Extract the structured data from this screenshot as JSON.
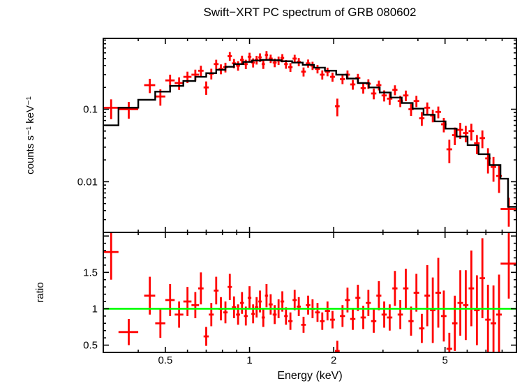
{
  "chart_data": {
    "type": "scatter",
    "title": "Swift−XRT PC spectrum of GRB 080602",
    "xlabel": "Energy (keV)",
    "xscale": "log",
    "xlim": [
      0.3,
      9.0
    ],
    "xticks": [
      {
        "v": 0.5,
        "label": "0.5"
      },
      {
        "v": 1,
        "label": "1"
      },
      {
        "v": 2,
        "label": "2"
      },
      {
        "v": 5,
        "label": "5"
      }
    ],
    "x_minor_ticks": [
      0.4,
      0.6,
      0.7,
      0.8,
      0.9,
      3,
      4,
      6,
      7,
      8
    ],
    "colors": {
      "data": "#ff0000",
      "model": "#000000",
      "reference": "#00ff00",
      "axis": "#000000",
      "background": "#ffffff"
    },
    "legend": "none",
    "grid": false,
    "panels": [
      {
        "name": "spectrum",
        "ylabel": "counts s⁻¹ keV⁻¹",
        "yscale": "log",
        "ylim": [
          0.002,
          0.95
        ],
        "yticks": [
          {
            "v": 0.01,
            "label": "0.01"
          },
          {
            "v": 0.1,
            "label": "0.1"
          }
        ],
        "model_step": {
          "edges": [
            0.3,
            0.34,
            0.4,
            0.46,
            0.52,
            0.58,
            0.64,
            0.7,
            0.76,
            0.82,
            0.88,
            0.95,
            1.02,
            1.1,
            1.2,
            1.3,
            1.42,
            1.55,
            1.7,
            1.86,
            2.04,
            2.23,
            2.44,
            2.67,
            2.92,
            3.2,
            3.5,
            3.83,
            4.19,
            4.59,
            5.02,
            5.5,
            6.02,
            6.59,
            7.21,
            7.89,
            8.4,
            9.0
          ],
          "values": [
            0.06,
            0.105,
            0.135,
            0.175,
            0.21,
            0.245,
            0.28,
            0.315,
            0.35,
            0.385,
            0.42,
            0.45,
            0.47,
            0.48,
            0.475,
            0.46,
            0.44,
            0.41,
            0.375,
            0.34,
            0.3,
            0.265,
            0.23,
            0.2,
            0.17,
            0.145,
            0.122,
            0.102,
            0.084,
            0.068,
            0.054,
            0.042,
            0.032,
            0.024,
            0.017,
            0.011,
            0.0045
          ]
        },
        "points": [
          [
            0.32,
            0.02,
            0.105,
            0.032
          ],
          [
            0.37,
            0.03,
            0.1,
            0.026
          ],
          [
            0.44,
            0.02,
            0.215,
            0.048
          ],
          [
            0.48,
            0.02,
            0.15,
            0.038
          ],
          [
            0.52,
            0.02,
            0.25,
            0.05
          ],
          [
            0.56,
            0.02,
            0.23,
            0.045
          ],
          [
            0.6,
            0.02,
            0.28,
            0.05
          ],
          [
            0.64,
            0.02,
            0.3,
            0.052
          ],
          [
            0.67,
            0.015,
            0.34,
            0.058
          ],
          [
            0.7,
            0.015,
            0.2,
            0.042
          ],
          [
            0.73,
            0.015,
            0.31,
            0.052
          ],
          [
            0.76,
            0.015,
            0.42,
            0.062
          ],
          [
            0.79,
            0.015,
            0.36,
            0.056
          ],
          [
            0.82,
            0.015,
            0.38,
            0.058
          ],
          [
            0.85,
            0.015,
            0.54,
            0.075
          ],
          [
            0.88,
            0.015,
            0.43,
            0.063
          ],
          [
            0.91,
            0.015,
            0.4,
            0.06
          ],
          [
            0.94,
            0.015,
            0.48,
            0.068
          ],
          [
            0.97,
            0.015,
            0.42,
            0.062
          ],
          [
            1.0,
            0.015,
            0.53,
            0.072
          ],
          [
            1.03,
            0.015,
            0.44,
            0.063
          ],
          [
            1.06,
            0.015,
            0.48,
            0.066
          ],
          [
            1.09,
            0.015,
            0.52,
            0.07
          ],
          [
            1.12,
            0.015,
            0.42,
            0.06
          ],
          [
            1.15,
            0.015,
            0.56,
            0.074
          ],
          [
            1.19,
            0.02,
            0.5,
            0.066
          ],
          [
            1.23,
            0.02,
            0.44,
            0.06
          ],
          [
            1.27,
            0.02,
            0.47,
            0.062
          ],
          [
            1.31,
            0.02,
            0.51,
            0.066
          ],
          [
            1.35,
            0.02,
            0.42,
            0.058
          ],
          [
            1.4,
            0.025,
            0.38,
            0.053
          ],
          [
            1.45,
            0.025,
            0.5,
            0.064
          ],
          [
            1.5,
            0.025,
            0.45,
            0.058
          ],
          [
            1.56,
            0.03,
            0.33,
            0.047
          ],
          [
            1.62,
            0.03,
            0.43,
            0.055
          ],
          [
            1.68,
            0.03,
            0.4,
            0.052
          ],
          [
            1.75,
            0.035,
            0.36,
            0.048
          ],
          [
            1.82,
            0.035,
            0.3,
            0.043
          ],
          [
            1.9,
            0.04,
            0.33,
            0.045
          ],
          [
            1.98,
            0.04,
            0.28,
            0.04
          ],
          [
            2.06,
            0.04,
            0.11,
            0.03
          ],
          [
            2.15,
            0.045,
            0.26,
            0.038
          ],
          [
            2.24,
            0.045,
            0.3,
            0.042
          ],
          [
            2.34,
            0.05,
            0.22,
            0.034
          ],
          [
            2.44,
            0.05,
            0.27,
            0.038
          ],
          [
            2.55,
            0.055,
            0.195,
            0.031
          ],
          [
            2.66,
            0.055,
            0.225,
            0.034
          ],
          [
            2.78,
            0.06,
            0.165,
            0.028
          ],
          [
            2.9,
            0.06,
            0.215,
            0.033
          ],
          [
            3.03,
            0.065,
            0.155,
            0.027
          ],
          [
            3.17,
            0.07,
            0.14,
            0.025
          ],
          [
            3.31,
            0.07,
            0.185,
            0.029
          ],
          [
            3.46,
            0.075,
            0.13,
            0.023
          ],
          [
            3.62,
            0.08,
            0.155,
            0.026
          ],
          [
            3.78,
            0.08,
            0.1,
            0.019
          ],
          [
            3.95,
            0.09,
            0.13,
            0.023
          ],
          [
            4.13,
            0.09,
            0.075,
            0.016
          ],
          [
            4.32,
            0.1,
            0.105,
            0.019
          ],
          [
            4.52,
            0.1,
            0.082,
            0.016
          ],
          [
            4.73,
            0.11,
            0.092,
            0.017
          ],
          [
            4.95,
            0.11,
            0.062,
            0.014
          ],
          [
            5.18,
            0.12,
            0.028,
            0.01
          ],
          [
            5.42,
            0.12,
            0.044,
            0.012
          ],
          [
            5.67,
            0.13,
            0.052,
            0.013
          ],
          [
            5.93,
            0.13,
            0.047,
            0.012
          ],
          [
            6.21,
            0.14,
            0.05,
            0.013
          ],
          [
            6.5,
            0.15,
            0.034,
            0.01
          ],
          [
            6.8,
            0.15,
            0.04,
            0.011
          ],
          [
            7.12,
            0.16,
            0.021,
            0.008
          ],
          [
            7.45,
            0.17,
            0.016,
            0.006
          ],
          [
            7.8,
            0.18,
            0.012,
            0.005
          ],
          [
            8.45,
            0.55,
            0.0042,
            0.0018
          ]
        ]
      },
      {
        "name": "ratio",
        "ylabel": "ratio",
        "yscale": "linear",
        "ylim": [
          0.4,
          2.05
        ],
        "yticks": [
          {
            "v": 0.5,
            "label": "0.5"
          },
          {
            "v": 1,
            "label": "1"
          },
          {
            "v": 1.5,
            "label": "1.5"
          }
        ],
        "y_minor_step": 0.1,
        "reference_line": 1,
        "points": [
          [
            0.32,
            0.02,
            1.78,
            0.38
          ],
          [
            0.37,
            0.03,
            0.68,
            0.18
          ],
          [
            0.44,
            0.02,
            1.18,
            0.26
          ],
          [
            0.48,
            0.02,
            0.8,
            0.2
          ],
          [
            0.52,
            0.02,
            1.12,
            0.22
          ],
          [
            0.56,
            0.02,
            0.92,
            0.18
          ],
          [
            0.6,
            0.02,
            1.1,
            0.2
          ],
          [
            0.64,
            0.02,
            1.05,
            0.18
          ],
          [
            0.67,
            0.015,
            1.28,
            0.22
          ],
          [
            0.7,
            0.015,
            0.62,
            0.13
          ],
          [
            0.73,
            0.015,
            0.92,
            0.16
          ],
          [
            0.76,
            0.015,
            1.25,
            0.19
          ],
          [
            0.79,
            0.015,
            1.0,
            0.16
          ],
          [
            0.82,
            0.015,
            0.95,
            0.15
          ],
          [
            0.85,
            0.015,
            1.3,
            0.18
          ],
          [
            0.88,
            0.015,
            1.02,
            0.15
          ],
          [
            0.91,
            0.015,
            0.92,
            0.14
          ],
          [
            0.94,
            0.015,
            1.08,
            0.15
          ],
          [
            0.97,
            0.015,
            0.9,
            0.13
          ],
          [
            1.0,
            0.015,
            1.15,
            0.16
          ],
          [
            1.03,
            0.015,
            0.93,
            0.13
          ],
          [
            1.06,
            0.015,
            1.02,
            0.14
          ],
          [
            1.09,
            0.015,
            1.1,
            0.15
          ],
          [
            1.12,
            0.015,
            0.88,
            0.13
          ],
          [
            1.15,
            0.015,
            1.18,
            0.16
          ],
          [
            1.19,
            0.02,
            1.06,
            0.14
          ],
          [
            1.23,
            0.02,
            0.92,
            0.13
          ],
          [
            1.27,
            0.02,
            1.0,
            0.13
          ],
          [
            1.31,
            0.02,
            1.1,
            0.14
          ],
          [
            1.35,
            0.02,
            0.9,
            0.12
          ],
          [
            1.4,
            0.025,
            0.83,
            0.12
          ],
          [
            1.45,
            0.025,
            1.12,
            0.14
          ],
          [
            1.5,
            0.025,
            1.03,
            0.13
          ],
          [
            1.56,
            0.03,
            0.78,
            0.11
          ],
          [
            1.62,
            0.03,
            1.05,
            0.13
          ],
          [
            1.68,
            0.03,
            1.0,
            0.13
          ],
          [
            1.75,
            0.035,
            0.95,
            0.13
          ],
          [
            1.82,
            0.035,
            0.83,
            0.12
          ],
          [
            1.9,
            0.04,
            0.97,
            0.13
          ],
          [
            1.98,
            0.04,
            0.85,
            0.12
          ],
          [
            2.06,
            0.04,
            0.42,
            0.14
          ],
          [
            2.15,
            0.045,
            0.9,
            0.15
          ],
          [
            2.24,
            0.045,
            1.12,
            0.17
          ],
          [
            2.34,
            0.05,
            0.86,
            0.15
          ],
          [
            2.44,
            0.05,
            1.15,
            0.18
          ],
          [
            2.55,
            0.055,
            0.88,
            0.16
          ],
          [
            2.66,
            0.055,
            1.08,
            0.18
          ],
          [
            2.78,
            0.06,
            0.83,
            0.16
          ],
          [
            2.9,
            0.06,
            1.18,
            0.2
          ],
          [
            3.03,
            0.065,
            0.92,
            0.18
          ],
          [
            3.17,
            0.07,
            0.88,
            0.18
          ],
          [
            3.31,
            0.07,
            1.28,
            0.24
          ],
          [
            3.46,
            0.075,
            0.92,
            0.2
          ],
          [
            3.62,
            0.08,
            1.28,
            0.27
          ],
          [
            3.78,
            0.08,
            0.83,
            0.2
          ],
          [
            3.95,
            0.09,
            1.22,
            0.26
          ],
          [
            4.13,
            0.09,
            0.73,
            0.2
          ],
          [
            4.32,
            0.1,
            1.18,
            0.42
          ],
          [
            4.52,
            0.1,
            0.98,
            0.45
          ],
          [
            4.73,
            0.11,
            1.22,
            0.48
          ],
          [
            4.95,
            0.11,
            0.9,
            0.35
          ],
          [
            5.18,
            0.12,
            0.45,
            0.22
          ],
          [
            5.42,
            0.12,
            0.8,
            0.38
          ],
          [
            5.67,
            0.13,
            1.08,
            0.45
          ],
          [
            5.93,
            0.13,
            1.05,
            0.48
          ],
          [
            6.21,
            0.14,
            1.28,
            0.52
          ],
          [
            6.5,
            0.15,
            0.98,
            0.48
          ],
          [
            6.8,
            0.15,
            1.42,
            0.55
          ],
          [
            7.12,
            0.16,
            0.85,
            0.48
          ],
          [
            7.45,
            0.17,
            0.8,
            0.52
          ],
          [
            7.8,
            0.18,
            0.92,
            0.55
          ],
          [
            8.45,
            0.55,
            1.62,
            0.48
          ]
        ]
      }
    ]
  }
}
